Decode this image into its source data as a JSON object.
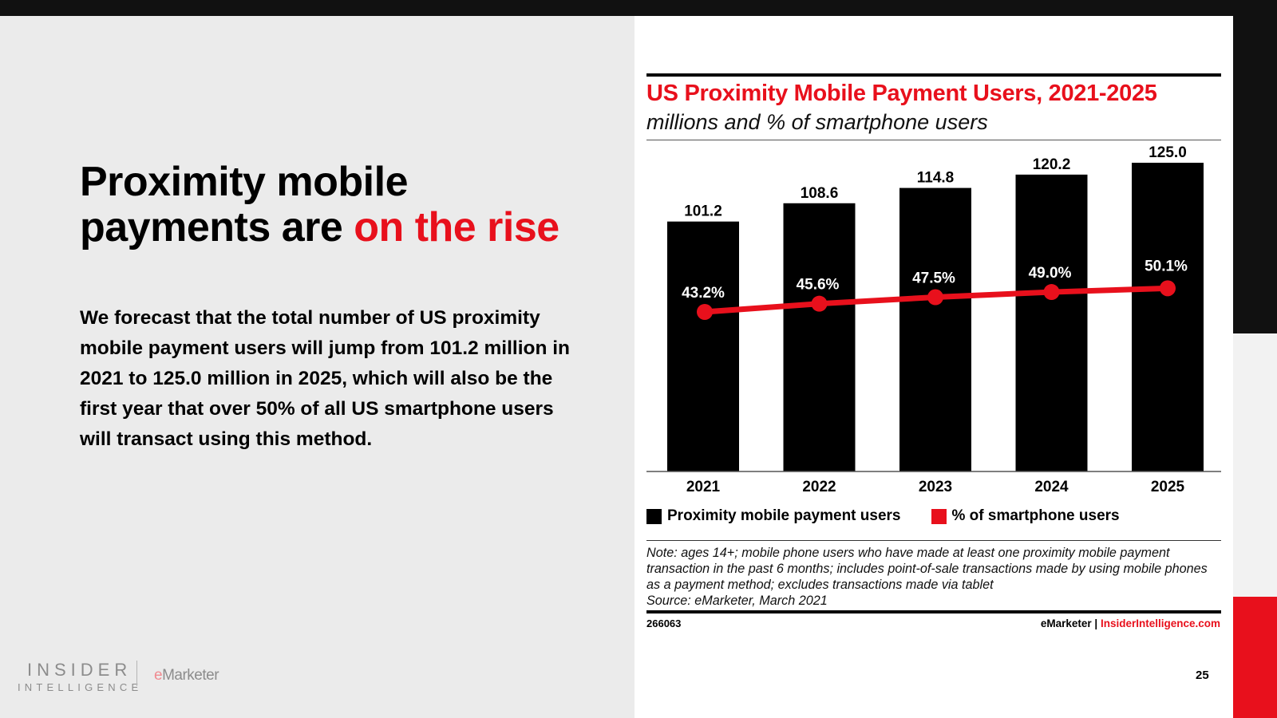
{
  "slide": {
    "headline_part1": "Proximity mobile payments are ",
    "headline_accent": "on the rise",
    "body": "We forecast that the total number of US proximity mobile payment users will jump from 101.2 million in 2021 to 125.0 million in 2025, which will also be the first year that over 50% of all US smartphone users will transact using this method.",
    "logo_line1": "INSIDER",
    "logo_line2": "INTELLIGENCE",
    "logo_em_e": "e",
    "logo_em_rest": "Marketer",
    "page_number": "25"
  },
  "colors": {
    "accent": "#e8101c",
    "bar": "#000000",
    "line": "#e8101c"
  },
  "chart_data": {
    "type": "bar",
    "title": "US Proximity Mobile Payment Users, 2021-2025",
    "subtitle": "millions and % of smartphone users",
    "categories": [
      "2021",
      "2022",
      "2023",
      "2024",
      "2025"
    ],
    "series": [
      {
        "name": "Proximity mobile payment users",
        "type": "bar",
        "values": [
          101.2,
          108.6,
          114.8,
          120.2,
          125.0
        ],
        "labels": [
          "101.2",
          "108.6",
          "114.8",
          "120.2",
          "125.0"
        ],
        "color": "#000000"
      },
      {
        "name": "% of smartphone users",
        "type": "line",
        "values": [
          43.2,
          45.6,
          47.5,
          49.0,
          50.1
        ],
        "labels": [
          "43.2%",
          "45.6%",
          "47.5%",
          "49.0%",
          "50.1%"
        ],
        "color": "#e8101c"
      }
    ],
    "xlabel": "",
    "ylabel": "",
    "ylim": [
      0,
      125
    ],
    "grid": false,
    "legend": "bottom-left",
    "legend_entries": [
      "Proximity mobile payment users",
      "% of smartphone users"
    ],
    "note": "Note: ages 14+; mobile phone users who have made at least one proximity mobile payment transaction in the past 6 months; includes point-of-sale transactions made by using mobile phones as a payment method; excludes transactions made via tablet",
    "source": "Source: eMarketer, March 2021",
    "chart_id": "266063",
    "credit_left": "eMarketer",
    "credit_sep": " | ",
    "credit_right": "InsiderIntelligence.com"
  }
}
